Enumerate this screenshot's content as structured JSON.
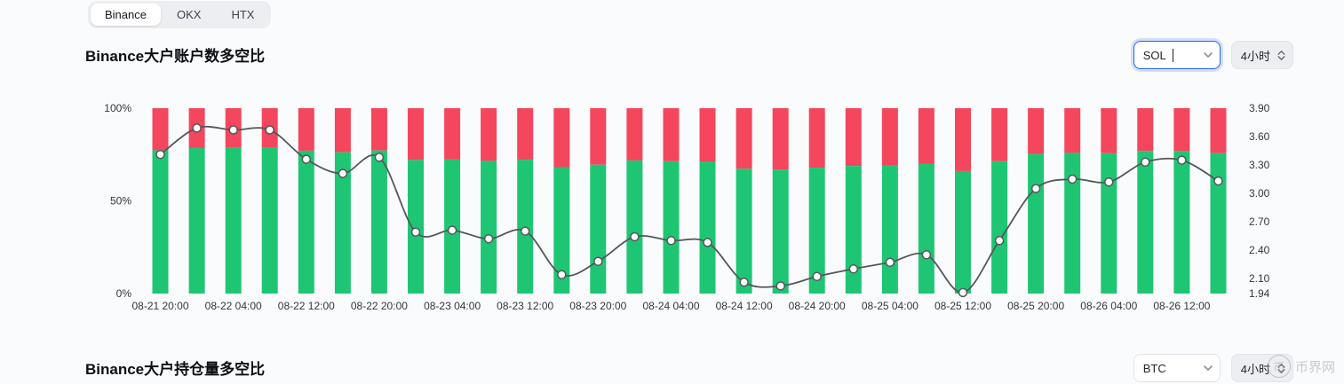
{
  "tabs": [
    {
      "label": "Binance",
      "active": true
    },
    {
      "label": "OKX",
      "active": false
    },
    {
      "label": "HTX",
      "active": false
    }
  ],
  "section1": {
    "title": "Binance大户账户数多空比",
    "symbol_value": "SOL",
    "interval_label": "4小时"
  },
  "section2": {
    "title": "Binance大户持仓量多空比",
    "symbol_value": "BTC",
    "interval_label": "4小时"
  },
  "watermark": {
    "icon_char": "币",
    "text": "币界网"
  },
  "colors": {
    "long_green": "#1ec674",
    "short_red": "#f4465d",
    "line": "#55565b",
    "axis_text": "#33363c"
  },
  "chart_data": {
    "type": "bar",
    "subtype": "stacked-percent-bars-with-line-overlay",
    "bar_count": 30,
    "tick_every": 2,
    "x_tick_labels": [
      "08-21 20:00",
      "08-22 04:00",
      "08-22 12:00",
      "08-22 20:00",
      "08-23 04:00",
      "08-23 12:00",
      "08-23 20:00",
      "08-24 04:00",
      "08-24 12:00",
      "08-24 20:00",
      "08-25 04:00",
      "08-25 12:00",
      "08-25 20:00",
      "08-26 04:00",
      "08-26 12:00"
    ],
    "left_axis": {
      "tick_labels": [
        "100%",
        "50%",
        "0%"
      ],
      "min": 0,
      "max": 100
    },
    "right_axis": {
      "tick_values": [
        3.9,
        3.6,
        3.3,
        3.0,
        2.7,
        2.4,
        2.1,
        1.94
      ],
      "min": 1.94,
      "max": 3.9
    },
    "series": [
      {
        "name": "long-account-percent",
        "type": "bar",
        "color_key": "long_green",
        "values": [
          77.3,
          78.7,
          78.6,
          78.6,
          77.1,
          76.2,
          77.2,
          72.1,
          72.3,
          71.6,
          72.2,
          68.2,
          69.5,
          71.8,
          71.4,
          71.3,
          67.3,
          66.9,
          67.9,
          68.8,
          69.4,
          70.1,
          66.1,
          71.4,
          75.3,
          75.9,
          75.7,
          76.9,
          77.0,
          75.8
        ]
      },
      {
        "name": "short-account-percent",
        "type": "bar",
        "color_key": "short_red",
        "stack_remainder_to": 100
      },
      {
        "name": "long-short-ratio",
        "type": "line",
        "color_key": "line",
        "values": [
          3.41,
          3.69,
          3.67,
          3.67,
          3.36,
          3.21,
          3.38,
          2.59,
          2.61,
          2.52,
          2.6,
          2.14,
          2.28,
          2.54,
          2.5,
          2.48,
          2.06,
          2.02,
          2.12,
          2.2,
          2.27,
          2.35,
          1.95,
          2.5,
          3.05,
          3.15,
          3.12,
          3.33,
          3.35,
          3.13
        ]
      }
    ],
    "grid": false,
    "legend": false
  }
}
